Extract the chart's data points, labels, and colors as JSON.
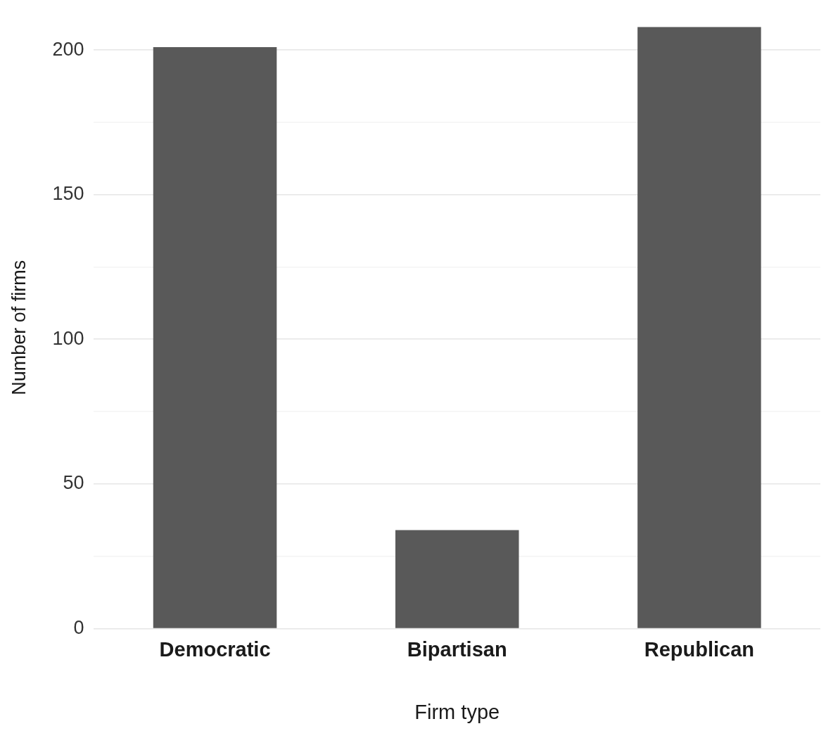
{
  "chart_data": {
    "type": "bar",
    "xlabel": "Firm type",
    "ylabel": "Number of firms",
    "categories": [
      "Democratic",
      "Bipartisan",
      "Republican"
    ],
    "values": [
      201,
      34,
      208
    ],
    "color": "#595959",
    "ylim": [
      0,
      208
    ],
    "yticks": [
      0,
      {
        "value": 25,
        "label": null
      },
      50,
      {
        "value": 75,
        "label": null
      },
      100,
      {
        "value": 125,
        "label": null
      },
      150,
      {
        "value": 175,
        "label": null
      },
      200
    ],
    "grid": "y",
    "legend": false
  }
}
